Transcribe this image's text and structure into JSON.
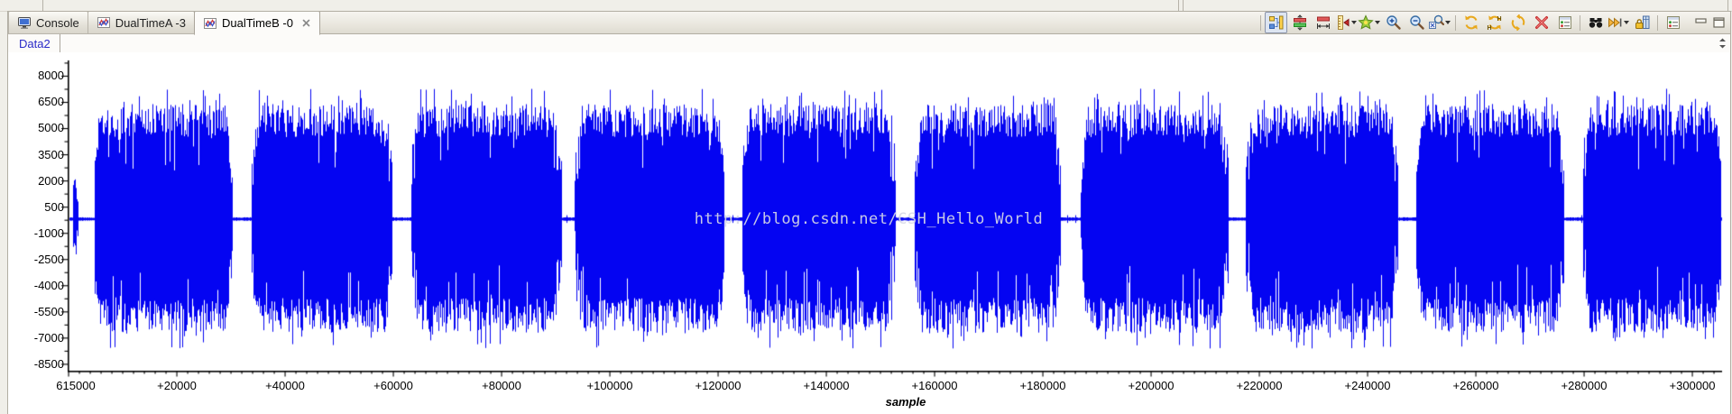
{
  "tabs": [
    {
      "name": "tab-console",
      "label": "Console",
      "icon": "console-icon",
      "active": false,
      "closable": false
    },
    {
      "name": "tab-dualtime-a",
      "label": "DualTimeA -3",
      "icon": "graph-icon",
      "active": false,
      "closable": false
    },
    {
      "name": "tab-dualtime-b",
      "label": "DualTimeB -0",
      "icon": "graph-icon",
      "active": true,
      "closable": true
    }
  ],
  "toolbar": {
    "items": [
      {
        "separator": true
      },
      {
        "name": "show-legend",
        "icon": "legend-icon",
        "pressed": true
      },
      {
        "name": "fit-height",
        "icon": "fit-icon"
      },
      {
        "name": "measure",
        "icon": "measure-icon"
      },
      {
        "name": "ruler",
        "icon": "ruler-icon",
        "dropdown": true
      },
      {
        "name": "add-graph",
        "icon": "star-icon",
        "dropdown": true
      },
      {
        "name": "zoom-in",
        "icon": "zoom-in-icon"
      },
      {
        "name": "zoom-out",
        "icon": "zoom-out-icon"
      },
      {
        "name": "zoom-select",
        "icon": "zoom-select-icon",
        "dropdown": true
      },
      {
        "separator": true
      },
      {
        "name": "refresh",
        "icon": "refresh-icon"
      },
      {
        "name": "refresh-hold",
        "icon": "refresh-h-icon"
      },
      {
        "name": "sync-graphs",
        "icon": "sync-icon"
      },
      {
        "name": "reset-graph",
        "icon": "reset-icon"
      },
      {
        "name": "graph-properties",
        "icon": "properties-icon"
      },
      {
        "separator": true
      },
      {
        "name": "watch",
        "icon": "binoculars-icon"
      },
      {
        "name": "step",
        "icon": "step-icon",
        "dropdown": true
      },
      {
        "name": "lock-view",
        "icon": "lock-icon"
      },
      {
        "separator": true
      },
      {
        "name": "view-menu",
        "icon": "view-menu-icon"
      }
    ],
    "window_buttons": [
      {
        "name": "minimize-button",
        "icon": "minimize-icon"
      },
      {
        "name": "maximize-button",
        "icon": "maximize-icon"
      }
    ]
  },
  "subtab": {
    "label": "Data2"
  },
  "chart_data": {
    "type": "line",
    "title": "",
    "xlabel": "sample",
    "ylabel": "",
    "series": [
      {
        "name": "Data2",
        "color": "#0404f2"
      }
    ],
    "x_ticks": [
      {
        "offset": 0,
        "label": "615000"
      },
      {
        "offset": 20000,
        "label": "+20000"
      },
      {
        "offset": 40000,
        "label": "+40000"
      },
      {
        "offset": 60000,
        "label": "+60000"
      },
      {
        "offset": 80000,
        "label": "+80000"
      },
      {
        "offset": 100000,
        "label": "+100000"
      },
      {
        "offset": 120000,
        "label": "+120000"
      },
      {
        "offset": 140000,
        "label": "+140000"
      },
      {
        "offset": 160000,
        "label": "+160000"
      },
      {
        "offset": 180000,
        "label": "+180000"
      },
      {
        "offset": 200000,
        "label": "+200000"
      },
      {
        "offset": 220000,
        "label": "+220000"
      },
      {
        "offset": 240000,
        "label": "+240000"
      },
      {
        "offset": 260000,
        "label": "+260000"
      },
      {
        "offset": 280000,
        "label": "+280000"
      },
      {
        "offset": 300000,
        "label": "+300000"
      }
    ],
    "x_minor_step": 2000,
    "x_max_offset": 305300,
    "y_ticks": [
      8000,
      6500,
      5000,
      3500,
      2000,
      500,
      -1000,
      -2500,
      -4000,
      -5500,
      -7000,
      -8500
    ],
    "y_minor_step": 750,
    "y_range": [
      -8870,
      8900
    ],
    "baseline_value": -185,
    "lead_blip": {
      "start": 700,
      "end": 1700,
      "amp": 0.5
    },
    "bursts": [
      {
        "start": 4700,
        "end": 30200
      },
      {
        "start": 33800,
        "end": 59800
      },
      {
        "start": 63300,
        "end": 91000
      },
      {
        "start": 93500,
        "end": 121000
      },
      {
        "start": 124500,
        "end": 152700
      },
      {
        "start": 156300,
        "end": 183300
      },
      {
        "start": 187000,
        "end": 214300
      },
      {
        "start": 217500,
        "end": 245500
      },
      {
        "start": 249000,
        "end": 276200
      },
      {
        "start": 279700,
        "end": 305300
      }
    ],
    "burst_amplitude": {
      "core_low": -5300,
      "core_high": 5100,
      "peak_low": -7400,
      "peak_high": 7100
    },
    "taper_samples": 1300,
    "watermark": "http://blog.csdn.net/CSH_Hello_World"
  }
}
